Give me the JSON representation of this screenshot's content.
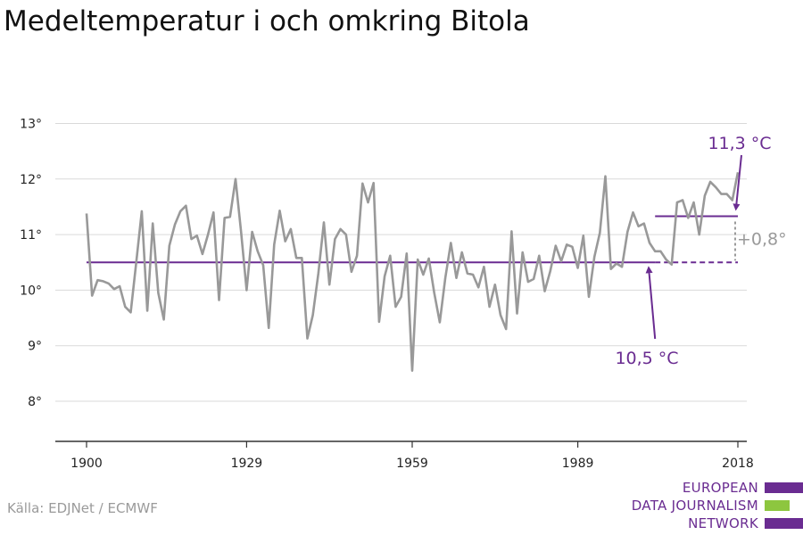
{
  "title": "Medeltemperatur i och omkring Bitola",
  "source": "Källa: EDJNet / ECMWF",
  "logo": {
    "line1": "EUROPEAN",
    "line2": "DATA JOURNALISM",
    "line3": "NETWORK",
    "colors": {
      "purple": "#6a2c91",
      "green": "#8dc63f"
    }
  },
  "colors": {
    "series": "#999999",
    "baseline": "#6a2c91",
    "annotation_purple": "#6a2c91",
    "difference": "#9a9a9a",
    "grid": "#d9d9d9",
    "axis": "#333333"
  },
  "chart_data": {
    "type": "line",
    "title": "Medeltemperatur i och omkring Bitola",
    "xlabel": "",
    "ylabel": "",
    "xlim": [
      1900,
      2018
    ],
    "ylim": [
      7.2,
      13.5
    ],
    "y_ticks": [
      8,
      9,
      10,
      11,
      12,
      13
    ],
    "y_tick_labels": [
      "8°",
      "9°",
      "10°",
      "11°",
      "12°",
      "13°"
    ],
    "x_ticks": [
      1900,
      1929,
      1959,
      1989,
      2018
    ],
    "x_tick_labels": [
      "1900",
      "1929",
      "1959",
      "1989",
      "2018"
    ],
    "grid": "horizontal",
    "x": [
      1900,
      1901,
      1902,
      1903,
      1904,
      1905,
      1906,
      1907,
      1908,
      1909,
      1910,
      1911,
      1912,
      1913,
      1914,
      1915,
      1916,
      1917,
      1918,
      1919,
      1920,
      1921,
      1922,
      1923,
      1924,
      1925,
      1926,
      1927,
      1928,
      1929,
      1930,
      1931,
      1932,
      1933,
      1934,
      1935,
      1936,
      1937,
      1938,
      1939,
      1940,
      1941,
      1942,
      1943,
      1944,
      1945,
      1946,
      1947,
      1948,
      1949,
      1950,
      1951,
      1952,
      1953,
      1954,
      1955,
      1956,
      1957,
      1958,
      1959,
      1960,
      1961,
      1962,
      1963,
      1964,
      1965,
      1966,
      1967,
      1968,
      1969,
      1970,
      1971,
      1972,
      1973,
      1974,
      1975,
      1976,
      1977,
      1978,
      1979,
      1980,
      1981,
      1982,
      1983,
      1984,
      1985,
      1986,
      1987,
      1988,
      1989,
      1990,
      1991,
      1992,
      1993,
      1994,
      1995,
      1996,
      1997,
      1998,
      1999,
      2000,
      2001,
      2002,
      2003,
      2004,
      2005,
      2006,
      2007,
      2008,
      2009,
      2010,
      2011,
      2012,
      2013,
      2014,
      2015,
      2016,
      2017,
      2018
    ],
    "values": [
      11.38,
      9.9,
      10.18,
      10.16,
      10.12,
      10.02,
      10.07,
      9.7,
      9.6,
      10.5,
      11.42,
      9.63,
      11.2,
      9.95,
      9.47,
      10.8,
      11.18,
      11.42,
      11.52,
      10.92,
      10.98,
      10.65,
      11.0,
      11.4,
      9.82,
      11.3,
      11.32,
      12.0,
      11.05,
      10.0,
      11.05,
      10.7,
      10.45,
      9.32,
      10.82,
      11.43,
      10.88,
      11.1,
      10.58,
      10.58,
      9.13,
      9.55,
      10.3,
      11.22,
      10.1,
      10.92,
      11.1,
      11.0,
      10.33,
      10.62,
      11.92,
      11.58,
      11.93,
      9.43,
      10.25,
      10.62,
      9.7,
      9.88,
      10.66,
      8.55,
      10.55,
      10.28,
      10.57,
      9.95,
      9.42,
      10.22,
      10.85,
      10.22,
      10.68,
      10.3,
      10.28,
      10.05,
      10.42,
      9.7,
      10.1,
      9.55,
      9.3,
      11.06,
      9.58,
      10.68,
      10.15,
      10.2,
      10.62,
      9.98,
      10.34,
      10.8,
      10.52,
      10.82,
      10.78,
      10.4,
      10.98,
      9.88,
      10.6,
      11.03,
      12.05,
      10.38,
      10.48,
      10.42,
      11.05,
      11.4,
      11.15,
      11.2,
      10.85,
      10.7,
      10.7,
      10.55,
      10.46,
      11.58,
      11.62,
      11.3,
      11.58,
      11.0,
      11.7,
      11.95,
      11.85,
      11.73,
      11.73,
      11.62,
      12.12
    ],
    "annotations": [
      {
        "label": "10,5 °C",
        "value": 10.5,
        "range": [
          1900,
          2003
        ],
        "dashed_range": [
          2003,
          2018
        ]
      },
      {
        "label": "11,3 °C",
        "value": 11.33,
        "range": [
          2003,
          2018
        ]
      },
      {
        "label": "+0,8°",
        "from": 10.5,
        "to": 11.33,
        "at": 2018
      }
    ]
  }
}
